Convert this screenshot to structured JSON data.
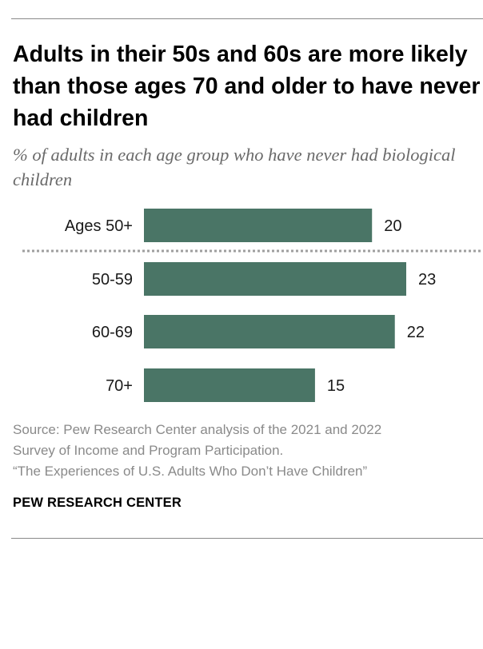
{
  "header": {
    "title": "Adults in their 50s and 60s are more likely than those ages 70 and older to have never had children",
    "subtitle": "% of adults in each age group who have never had biological children"
  },
  "chart_data": {
    "type": "bar",
    "orientation": "horizontal",
    "title": "Adults in their 50s and 60s are more likely than those ages 70 and older to have never had children",
    "subtitle": "% of adults in each age group who have never had biological children",
    "categories": [
      "Ages 50+",
      "50-59",
      "60-69",
      "70+"
    ],
    "values": [
      20,
      23,
      22,
      15
    ],
    "value_labels": [
      "20",
      "23",
      "22",
      "15"
    ],
    "separator_after_index": 0,
    "xlim": [
      0,
      23
    ],
    "bar_color": "#4a7566",
    "separator_color": "#9e9e9e",
    "grid": false,
    "xlabel": "",
    "ylabel": ""
  },
  "footer": {
    "source_lines": [
      "Source: Pew Research Center analysis of the 2021 and 2022",
      "Survey of Income and Program Participation.",
      "“The Experiences of U.S. Adults Who Don’t Have Children”"
    ],
    "brand": "PEW RESEARCH CENTER"
  },
  "colors": {
    "rule": "#8a8a8a",
    "title": "#000000",
    "subtitle": "#6a6a6a",
    "source": "#8a8a8a"
  }
}
